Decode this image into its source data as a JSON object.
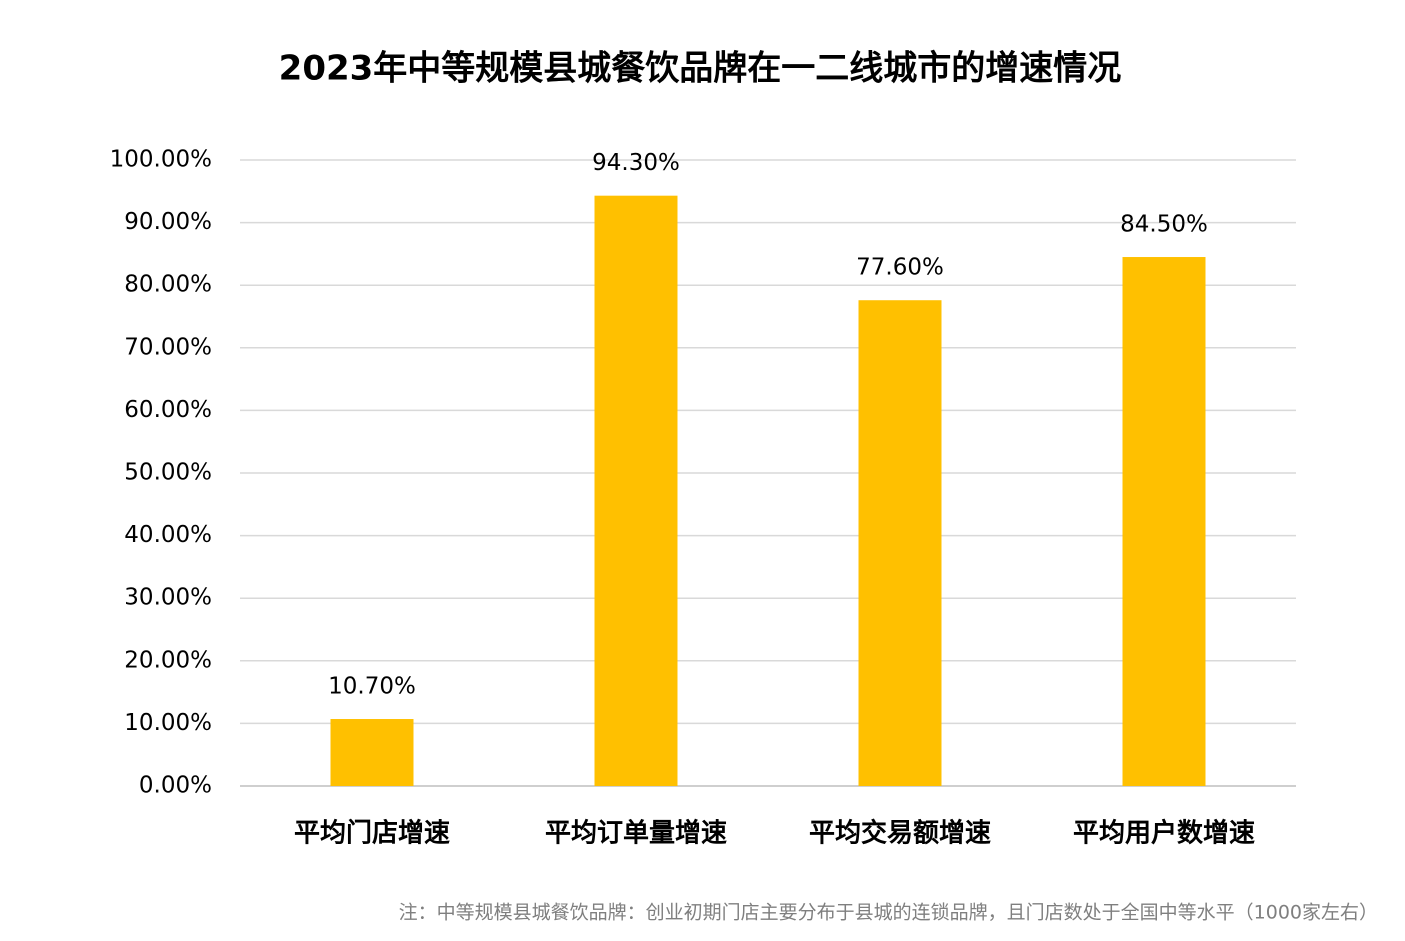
{
  "chart_data": {
    "type": "bar",
    "title": "2023年中等规模县城餐饮品牌在一二线城市的增速情况",
    "categories": [
      "平均门店增速",
      "平均订单量增速",
      "平均交易额增速",
      "平均用户数增速"
    ],
    "values": [
      10.7,
      94.3,
      77.6,
      84.5
    ],
    "value_labels": [
      "10.70%",
      "94.30%",
      "77.60%",
      "84.50%"
    ],
    "color": "#ffc000",
    "ylim": [
      0,
      100
    ],
    "yticks": [
      {
        "value": 0,
        "label": "0.00%"
      },
      {
        "value": 10,
        "label": "10.00%"
      },
      {
        "value": 20,
        "label": "20.00%"
      },
      {
        "value": 30,
        "label": "30.00%"
      },
      {
        "value": 40,
        "label": "40.00%"
      },
      {
        "value": 50,
        "label": "50.00%"
      },
      {
        "value": 60,
        "label": "60.00%"
      },
      {
        "value": 70,
        "label": "70.00%"
      },
      {
        "value": 80,
        "label": "80.00%"
      },
      {
        "value": 90,
        "label": "90.00%"
      },
      {
        "value": 100,
        "label": "100.00%"
      }
    ],
    "grid": true,
    "note": "注：中等规模县城餐饮品牌：创业初期门店主要分布于县城的连锁品牌，且门店数处于全国中等水平（1000家左右）"
  }
}
